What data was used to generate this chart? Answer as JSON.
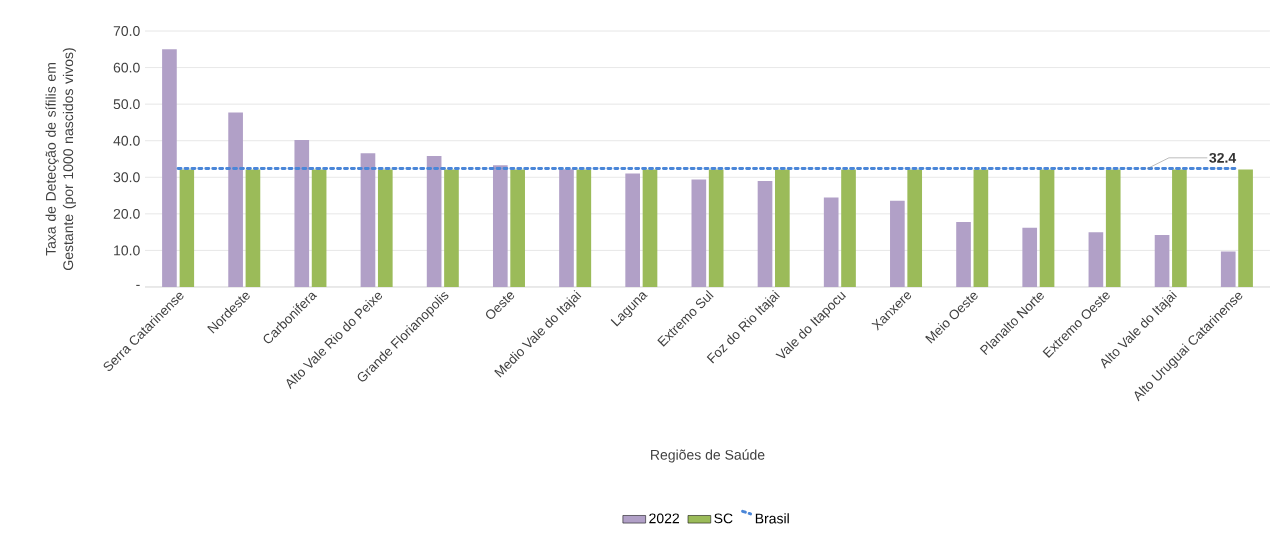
{
  "chart_data": {
    "type": "bar",
    "xlabel": "Regiões de Saúde",
    "ylabel": "Taxa de Detecção de sífilis em Gestante (por 1000 nascidos vivos)",
    "categories": [
      "Serra Catarinense",
      "Nordeste",
      "Carbonifera",
      "Alto Vale Rio do Peixe",
      "Grande Florianopolis",
      "Oeste",
      "Medio Vale do Itajai",
      "Laguna",
      "Extremo Sul",
      "Foz do Rio Itajai",
      "Vale do Itapocu",
      "Xanxere",
      "Meio Oeste",
      "Planalto Norte",
      "Extremo Oeste",
      "Alto Vale do Itajai",
      "Alto Uruguai Catarinense"
    ],
    "series": [
      {
        "name": "2022",
        "color": "#b1a0c7",
        "values": [
          65.0,
          47.7,
          40.2,
          36.6,
          35.8,
          33.3,
          32.2,
          31.0,
          29.4,
          29.0,
          24.5,
          23.6,
          17.8,
          16.2,
          15.0,
          14.2,
          9.7
        ]
      },
      {
        "name": "SC",
        "color": "#9bbb59",
        "values": [
          32.1,
          32.1,
          32.1,
          32.1,
          32.1,
          32.1,
          32.1,
          32.1,
          32.1,
          32.1,
          32.1,
          32.1,
          32.1,
          32.1,
          32.1,
          32.1,
          32.1
        ]
      },
      {
        "name": "Brasil",
        "type": "line",
        "line_style": "dotted",
        "color": "#4a86d8",
        "values": [
          32.4,
          32.4,
          32.4,
          32.4,
          32.4,
          32.4,
          32.4,
          32.4,
          32.4,
          32.4,
          32.4,
          32.4,
          32.4,
          32.4,
          32.4,
          32.4,
          32.4
        ],
        "value_labels": [
          null,
          null,
          null,
          null,
          null,
          null,
          null,
          null,
          null,
          null,
          null,
          null,
          null,
          null,
          null,
          null,
          "32.4"
        ]
      }
    ],
    "ylim": [
      0,
      70
    ],
    "yticks": [
      {
        "value": 0,
        "label": "-"
      },
      {
        "value": 10,
        "label": "10.0"
      },
      {
        "value": 20,
        "label": "20.0"
      },
      {
        "value": 30,
        "label": "30.0"
      },
      {
        "value": 40,
        "label": "40.0"
      },
      {
        "value": 50,
        "label": "50.0"
      },
      {
        "value": 60,
        "label": "60.0"
      },
      {
        "value": 70,
        "label": "70.0"
      }
    ],
    "grid": "y",
    "legend": "bottom"
  }
}
